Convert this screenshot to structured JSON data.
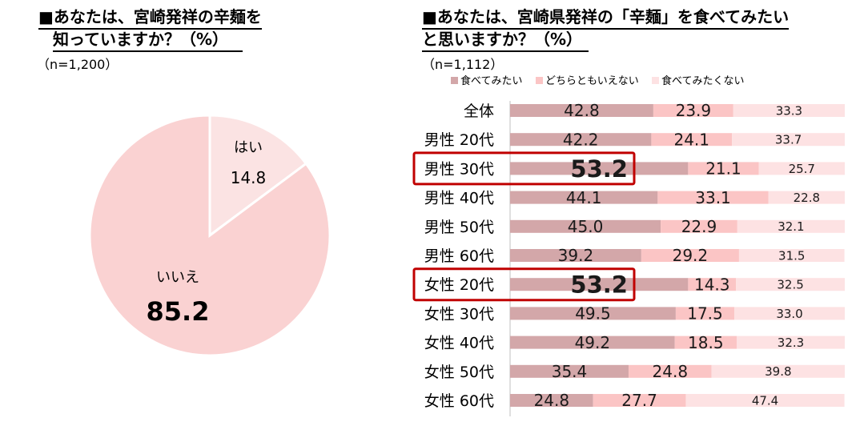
{
  "left": {
    "title_line1": "■あなたは、宮崎発祥の辛麺を",
    "title_line2": "知っていますか？（%）",
    "sample": "（n=1,200）"
  },
  "right": {
    "title_line1": "■あなたは、宮崎県発祥の「辛麺」を食べてみたい",
    "title_line2": "と思いますか？（%）",
    "sample": "（n=1,112）"
  },
  "chart_data": [
    {
      "type": "pie",
      "title": "■あなたは、宮崎発祥の辛麺を知っていますか？（%）",
      "slices": [
        {
          "label": "はい",
          "value": 14.8,
          "color": "#fbe3e3"
        },
        {
          "label": "いいえ",
          "value": 85.2,
          "color": "#fad2d2"
        }
      ]
    },
    {
      "type": "bar",
      "orientation": "horizontal",
      "stacked": true,
      "title": "■あなたは、宮崎県発祥の「辛麺」を食べてみたいと思いますか？（%）",
      "categories": [
        "全体",
        "男性 20代",
        "男性 30代",
        "男性 40代",
        "男性 50代",
        "男性 60代",
        "女性 20代",
        "女性 30代",
        "女性 40代",
        "女性 50代",
        "女性 60代"
      ],
      "series": [
        {
          "name": "食べてみたい",
          "color": "#d3a7a9",
          "values": [
            42.8,
            42.2,
            53.2,
            44.1,
            45.0,
            39.2,
            53.2,
            49.5,
            49.2,
            35.4,
            24.8
          ]
        },
        {
          "name": "どちらともいえない",
          "color": "#fbc5c5",
          "values": [
            23.9,
            24.1,
            21.1,
            33.1,
            22.9,
            29.2,
            14.3,
            17.5,
            18.5,
            24.8,
            27.7
          ]
        },
        {
          "name": "食べてみたくない",
          "color": "#fde2e3",
          "values": [
            33.3,
            33.7,
            25.7,
            22.8,
            32.1,
            31.5,
            32.5,
            33.0,
            32.3,
            39.8,
            47.4
          ]
        }
      ],
      "highlighted_categories": [
        "男性 30代",
        "女性 20代"
      ],
      "highlight_color": "#c00000",
      "legend_position": "top"
    }
  ]
}
